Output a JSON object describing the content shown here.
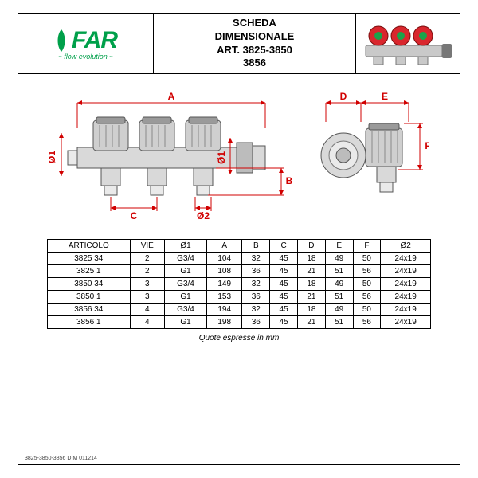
{
  "logo": {
    "text": "FAR",
    "tagline": "flow evolution",
    "color": "#00a04a"
  },
  "title": {
    "line1": "SCHEDA",
    "line2": "DIMENSIONALE",
    "line3": "ART. 3825-3850",
    "line4": "3856"
  },
  "diagram": {
    "labels": {
      "A": "A",
      "B": "B",
      "C": "C",
      "D": "D",
      "E": "E",
      "F": "F",
      "d1": "Ø1",
      "d2": "Ø2"
    },
    "dim_color": "#d10000",
    "body_fill": "#d9d9d9",
    "body_stroke": "#555555"
  },
  "product_thumb": {
    "handle_color": "#d9262d",
    "handle_top": "#1aa34a",
    "body_color": "#c9c9c9"
  },
  "table": {
    "columns": [
      "ARTICOLO",
      "VIE",
      "Ø1",
      "A",
      "B",
      "C",
      "D",
      "E",
      "F",
      "Ø2"
    ],
    "rows": [
      [
        "3825 34",
        "2",
        "G3/4",
        "104",
        "32",
        "45",
        "18",
        "49",
        "50",
        "24x19"
      ],
      [
        "3825 1",
        "2",
        "G1",
        "108",
        "36",
        "45",
        "21",
        "51",
        "56",
        "24x19"
      ],
      [
        "3850 34",
        "3",
        "G3/4",
        "149",
        "32",
        "45",
        "18",
        "49",
        "50",
        "24x19"
      ],
      [
        "3850 1",
        "3",
        "G1",
        "153",
        "36",
        "45",
        "21",
        "51",
        "56",
        "24x19"
      ],
      [
        "3856 34",
        "4",
        "G3/4",
        "194",
        "32",
        "45",
        "18",
        "49",
        "50",
        "24x19"
      ],
      [
        "3856 1",
        "4",
        "G1",
        "198",
        "36",
        "45",
        "21",
        "51",
        "56",
        "24x19"
      ]
    ]
  },
  "footnote": "Quote espresse in mm",
  "docref": "3825-3850-3856 DIM 011214"
}
